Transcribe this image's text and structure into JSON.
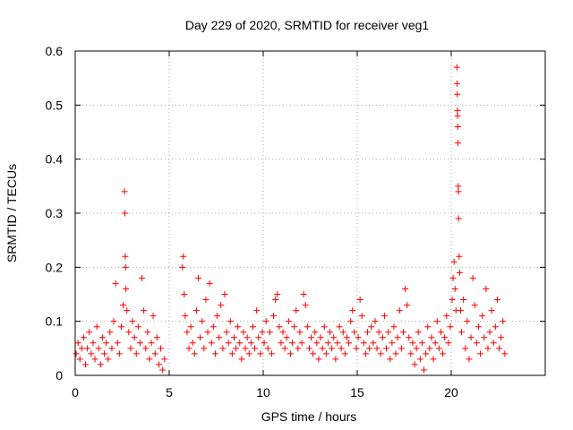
{
  "chart_data": {
    "type": "scatter",
    "title": "Day 229 of 2020, SRMTID for receiver veg1",
    "xlabel": "GPS time / hours",
    "ylabel": "SRMTID / TECUs",
    "xlim": [
      0,
      25
    ],
    "ylim": [
      0,
      0.6
    ],
    "x_ticks": [
      0,
      5,
      10,
      15,
      20
    ],
    "y_ticks": [
      0,
      0.1,
      0.2,
      0.3,
      0.4,
      0.5,
      0.6
    ],
    "y_tick_labels": [
      "0",
      "0.1",
      "0.2",
      "0.3",
      "0.4",
      "0.5",
      "0.6"
    ],
    "grid": true,
    "marker": "+",
    "series": [
      {
        "name": "veg1",
        "color": "#ff0000",
        "points": [
          [
            0.05,
            0.04
          ],
          [
            0.15,
            0.06
          ],
          [
            0.25,
            0.03
          ],
          [
            0.35,
            0.05
          ],
          [
            0.45,
            0.07
          ],
          [
            0.55,
            0.02
          ],
          [
            0.65,
            0.05
          ],
          [
            0.75,
            0.08
          ],
          [
            0.85,
            0.04
          ],
          [
            0.95,
            0.06
          ],
          [
            1.05,
            0.03
          ],
          [
            1.15,
            0.09
          ],
          [
            1.25,
            0.05
          ],
          [
            1.35,
            0.02
          ],
          [
            1.45,
            0.07
          ],
          [
            1.55,
            0.04
          ],
          [
            1.65,
            0.06
          ],
          [
            1.75,
            0.03
          ],
          [
            1.85,
            0.08
          ],
          [
            1.95,
            0.05
          ],
          [
            2.05,
            0.1
          ],
          [
            2.15,
            0.17
          ],
          [
            2.25,
            0.06
          ],
          [
            2.35,
            0.04
          ],
          [
            2.45,
            0.09
          ],
          [
            2.55,
            0.13
          ],
          [
            2.62,
            0.34
          ],
          [
            2.64,
            0.3
          ],
          [
            2.66,
            0.22
          ],
          [
            2.68,
            0.2
          ],
          [
            2.7,
            0.16
          ],
          [
            2.75,
            0.12
          ],
          [
            2.85,
            0.08
          ],
          [
            2.95,
            0.05
          ],
          [
            3.05,
            0.1
          ],
          [
            3.15,
            0.07
          ],
          [
            3.25,
            0.04
          ],
          [
            3.35,
            0.09
          ],
          [
            3.45,
            0.06
          ],
          [
            3.55,
            0.18
          ],
          [
            3.65,
            0.12
          ],
          [
            3.75,
            0.05
          ],
          [
            3.85,
            0.08
          ],
          [
            3.95,
            0.03
          ],
          [
            4.05,
            0.06
          ],
          [
            4.15,
            0.11
          ],
          [
            4.25,
            0.04
          ],
          [
            4.35,
            0.07
          ],
          [
            4.45,
            0.02
          ],
          [
            4.55,
            0.05
          ],
          [
            4.65,
            0.01
          ],
          [
            4.75,
            0.03
          ],
          [
            5.7,
            0.2
          ],
          [
            5.75,
            0.22
          ],
          [
            5.8,
            0.15
          ],
          [
            5.85,
            0.11
          ],
          [
            5.95,
            0.08
          ],
          [
            6.05,
            0.05
          ],
          [
            6.15,
            0.09
          ],
          [
            6.25,
            0.06
          ],
          [
            6.35,
            0.04
          ],
          [
            6.45,
            0.12
          ],
          [
            6.55,
            0.18
          ],
          [
            6.65,
            0.07
          ],
          [
            6.75,
            0.1
          ],
          [
            6.85,
            0.05
          ],
          [
            6.95,
            0.14
          ],
          [
            7.05,
            0.08
          ],
          [
            7.15,
            0.17
          ],
          [
            7.25,
            0.06
          ],
          [
            7.35,
            0.09
          ],
          [
            7.45,
            0.04
          ],
          [
            7.55,
            0.11
          ],
          [
            7.65,
            0.07
          ],
          [
            7.75,
            0.13
          ],
          [
            7.85,
            0.05
          ],
          [
            7.95,
            0.15
          ],
          [
            8.05,
            0.08
          ],
          [
            8.15,
            0.06
          ],
          [
            8.25,
            0.1
          ],
          [
            8.35,
            0.04
          ],
          [
            8.45,
            0.07
          ],
          [
            8.55,
            0.05
          ],
          [
            8.65,
            0.09
          ],
          [
            8.75,
            0.06
          ],
          [
            8.85,
            0.03
          ],
          [
            8.95,
            0.08
          ],
          [
            9.05,
            0.05
          ],
          [
            9.15,
            0.07
          ],
          [
            9.25,
            0.04
          ],
          [
            9.35,
            0.06
          ],
          [
            9.45,
            0.09
          ],
          [
            9.55,
            0.05
          ],
          [
            9.65,
            0.12
          ],
          [
            9.75,
            0.07
          ],
          [
            9.85,
            0.04
          ],
          [
            9.95,
            0.08
          ],
          [
            10.05,
            0.06
          ],
          [
            10.15,
            0.1
          ],
          [
            10.25,
            0.05
          ],
          [
            10.35,
            0.08
          ],
          [
            10.45,
            0.04
          ],
          [
            10.55,
            0.11
          ],
          [
            10.65,
            0.14
          ],
          [
            10.75,
            0.15
          ],
          [
            10.85,
            0.09
          ],
          [
            10.95,
            0.06
          ],
          [
            11.05,
            0.08
          ],
          [
            11.15,
            0.05
          ],
          [
            11.25,
            0.07
          ],
          [
            11.35,
            0.1
          ],
          [
            11.45,
            0.04
          ],
          [
            11.55,
            0.06
          ],
          [
            11.65,
            0.09
          ],
          [
            11.75,
            0.12
          ],
          [
            11.85,
            0.05
          ],
          [
            11.95,
            0.08
          ],
          [
            12.05,
            0.06
          ],
          [
            12.15,
            0.15
          ],
          [
            12.25,
            0.13
          ],
          [
            12.35,
            0.09
          ],
          [
            12.45,
            0.05
          ],
          [
            12.55,
            0.07
          ],
          [
            12.65,
            0.04
          ],
          [
            12.75,
            0.08
          ],
          [
            12.85,
            0.06
          ],
          [
            12.95,
            0.03
          ],
          [
            13.05,
            0.07
          ],
          [
            13.15,
            0.05
          ],
          [
            13.25,
            0.09
          ],
          [
            13.35,
            0.04
          ],
          [
            13.45,
            0.06
          ],
          [
            13.55,
            0.08
          ],
          [
            13.65,
            0.05
          ],
          [
            13.75,
            0.07
          ],
          [
            13.85,
            0.03
          ],
          [
            13.95,
            0.06
          ],
          [
            14.05,
            0.09
          ],
          [
            14.15,
            0.05
          ],
          [
            14.25,
            0.08
          ],
          [
            14.35,
            0.04
          ],
          [
            14.45,
            0.07
          ],
          [
            14.55,
            0.06
          ],
          [
            14.65,
            0.1
          ],
          [
            14.75,
            0.12
          ],
          [
            14.85,
            0.08
          ],
          [
            14.95,
            0.05
          ],
          [
            15.05,
            0.07
          ],
          [
            15.15,
            0.14
          ],
          [
            15.25,
            0.11
          ],
          [
            15.35,
            0.06
          ],
          [
            15.45,
            0.04
          ],
          [
            15.55,
            0.08
          ],
          [
            15.65,
            0.05
          ],
          [
            15.75,
            0.09
          ],
          [
            15.85,
            0.06
          ],
          [
            15.95,
            0.1
          ],
          [
            16.05,
            0.05
          ],
          [
            16.15,
            0.08
          ],
          [
            16.25,
            0.04
          ],
          [
            16.35,
            0.07
          ],
          [
            16.45,
            0.11
          ],
          [
            16.55,
            0.05
          ],
          [
            16.65,
            0.08
          ],
          [
            16.75,
            0.03
          ],
          [
            16.85,
            0.06
          ],
          [
            16.95,
            0.09
          ],
          [
            17.05,
            0.04
          ],
          [
            17.15,
            0.07
          ],
          [
            17.25,
            0.12
          ],
          [
            17.35,
            0.05
          ],
          [
            17.45,
            0.08
          ],
          [
            17.55,
            0.16
          ],
          [
            17.65,
            0.13
          ],
          [
            17.75,
            0.07
          ],
          [
            17.85,
            0.04
          ],
          [
            17.95,
            0.06
          ],
          [
            18.05,
            0.02
          ],
          [
            18.15,
            0.05
          ],
          [
            18.25,
            0.08
          ],
          [
            18.35,
            0.03
          ],
          [
            18.45,
            0.06
          ],
          [
            18.55,
            0.01
          ],
          [
            18.65,
            0.04
          ],
          [
            18.75,
            0.09
          ],
          [
            18.85,
            0.05
          ],
          [
            18.95,
            0.07
          ],
          [
            19.05,
            0.03
          ],
          [
            19.15,
            0.06
          ],
          [
            19.25,
            0.1
          ],
          [
            19.35,
            0.05
          ],
          [
            19.45,
            0.08
          ],
          [
            19.55,
            0.04
          ],
          [
            19.65,
            0.07
          ],
          [
            19.75,
            0.11
          ],
          [
            19.85,
            0.06
          ],
          [
            19.95,
            0.09
          ],
          [
            20.05,
            0.14
          ],
          [
            20.1,
            0.18
          ],
          [
            20.15,
            0.21
          ],
          [
            20.2,
            0.16
          ],
          [
            20.25,
            0.12
          ],
          [
            20.3,
            0.57
          ],
          [
            20.31,
            0.54
          ],
          [
            20.32,
            0.52
          ],
          [
            20.33,
            0.49
          ],
          [
            20.34,
            0.48
          ],
          [
            20.35,
            0.46
          ],
          [
            20.36,
            0.43
          ],
          [
            20.37,
            0.35
          ],
          [
            20.38,
            0.34
          ],
          [
            20.39,
            0.29
          ],
          [
            20.42,
            0.22
          ],
          [
            20.45,
            0.19
          ],
          [
            20.5,
            0.12
          ],
          [
            20.55,
            0.08
          ],
          [
            20.65,
            0.14
          ],
          [
            20.75,
            0.05
          ],
          [
            20.85,
            0.1
          ],
          [
            20.95,
            0.03
          ],
          [
            21.05,
            0.07
          ],
          [
            21.15,
            0.18
          ],
          [
            21.25,
            0.13
          ],
          [
            21.35,
            0.06
          ],
          [
            21.45,
            0.09
          ],
          [
            21.55,
            0.04
          ],
          [
            21.65,
            0.11
          ],
          [
            21.75,
            0.07
          ],
          [
            21.85,
            0.16
          ],
          [
            21.95,
            0.05
          ],
          [
            22.05,
            0.08
          ],
          [
            22.15,
            0.12
          ],
          [
            22.25,
            0.06
          ],
          [
            22.35,
            0.09
          ],
          [
            22.45,
            0.14
          ],
          [
            22.55,
            0.05
          ],
          [
            22.65,
            0.07
          ],
          [
            22.75,
            0.1
          ],
          [
            22.85,
            0.04
          ]
        ]
      }
    ]
  }
}
